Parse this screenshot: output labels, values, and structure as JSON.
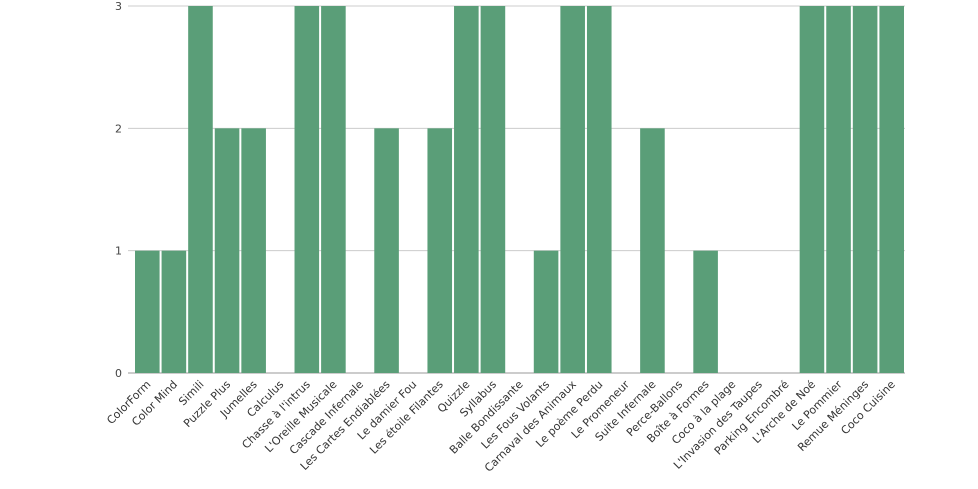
{
  "chart_data": {
    "type": "bar",
    "title": "",
    "xlabel": "",
    "ylabel": "",
    "ylim": [
      0,
      3
    ],
    "yticks": [
      0,
      1,
      2,
      3
    ],
    "grid": true,
    "legend": "none",
    "bar_color": "#5a9e78",
    "categories": [
      "ColorForm",
      "Color Mind",
      "Simili",
      "Puzzle Plus",
      "Jumelles",
      "Calculus",
      "Chasse à l'intrus",
      "L'Oreille Musicale",
      "Cascade Infernale",
      "Les Cartes Endiablées",
      "Le damier Fou",
      "Les étoile Filantes",
      "Quizzle",
      "Syllabus",
      "Balle Bondissante",
      "Les Fous Volants",
      "Carnaval des Animaux",
      "Le poème Perdu",
      "Le Promeneur",
      "Suite Infernale",
      "Perce-Ballons",
      "Boîte à Formes",
      "Coco à la plage",
      "L'Invasion des Taupes",
      "Parking Encombré",
      "L'Arche de Noé",
      "Le Pommier",
      "Remue Méninges",
      "Coco Cuisine"
    ],
    "values": [
      1,
      1,
      3,
      2,
      2,
      0,
      3,
      3,
      0,
      2,
      0,
      2,
      3,
      3,
      0,
      1,
      3,
      3,
      0,
      2,
      0,
      1,
      0,
      0,
      0,
      3,
      3,
      3,
      3
    ]
  }
}
